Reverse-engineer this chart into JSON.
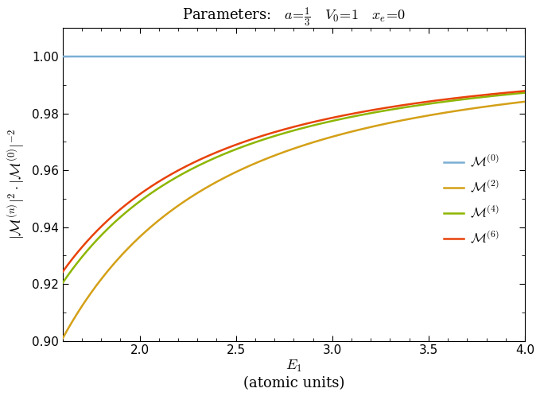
{
  "title_text": "Parameters:   a=",
  "xmin": 1.6,
  "xmax": 4.0,
  "ymin": 0.9,
  "ymax": 1.01,
  "yticks": [
    0.9,
    0.92,
    0.94,
    0.96,
    0.98,
    1.0
  ],
  "xticks": [
    2.0,
    2.5,
    3.0,
    3.5,
    4.0
  ],
  "colors": {
    "M0": "#7BAFD4",
    "M2": "#D4A017",
    "M4": "#8DB600",
    "M6": "#E8420A"
  },
  "a": 0.3333333333,
  "V0": 1.0,
  "xe": 0.0,
  "background": "#ffffff"
}
